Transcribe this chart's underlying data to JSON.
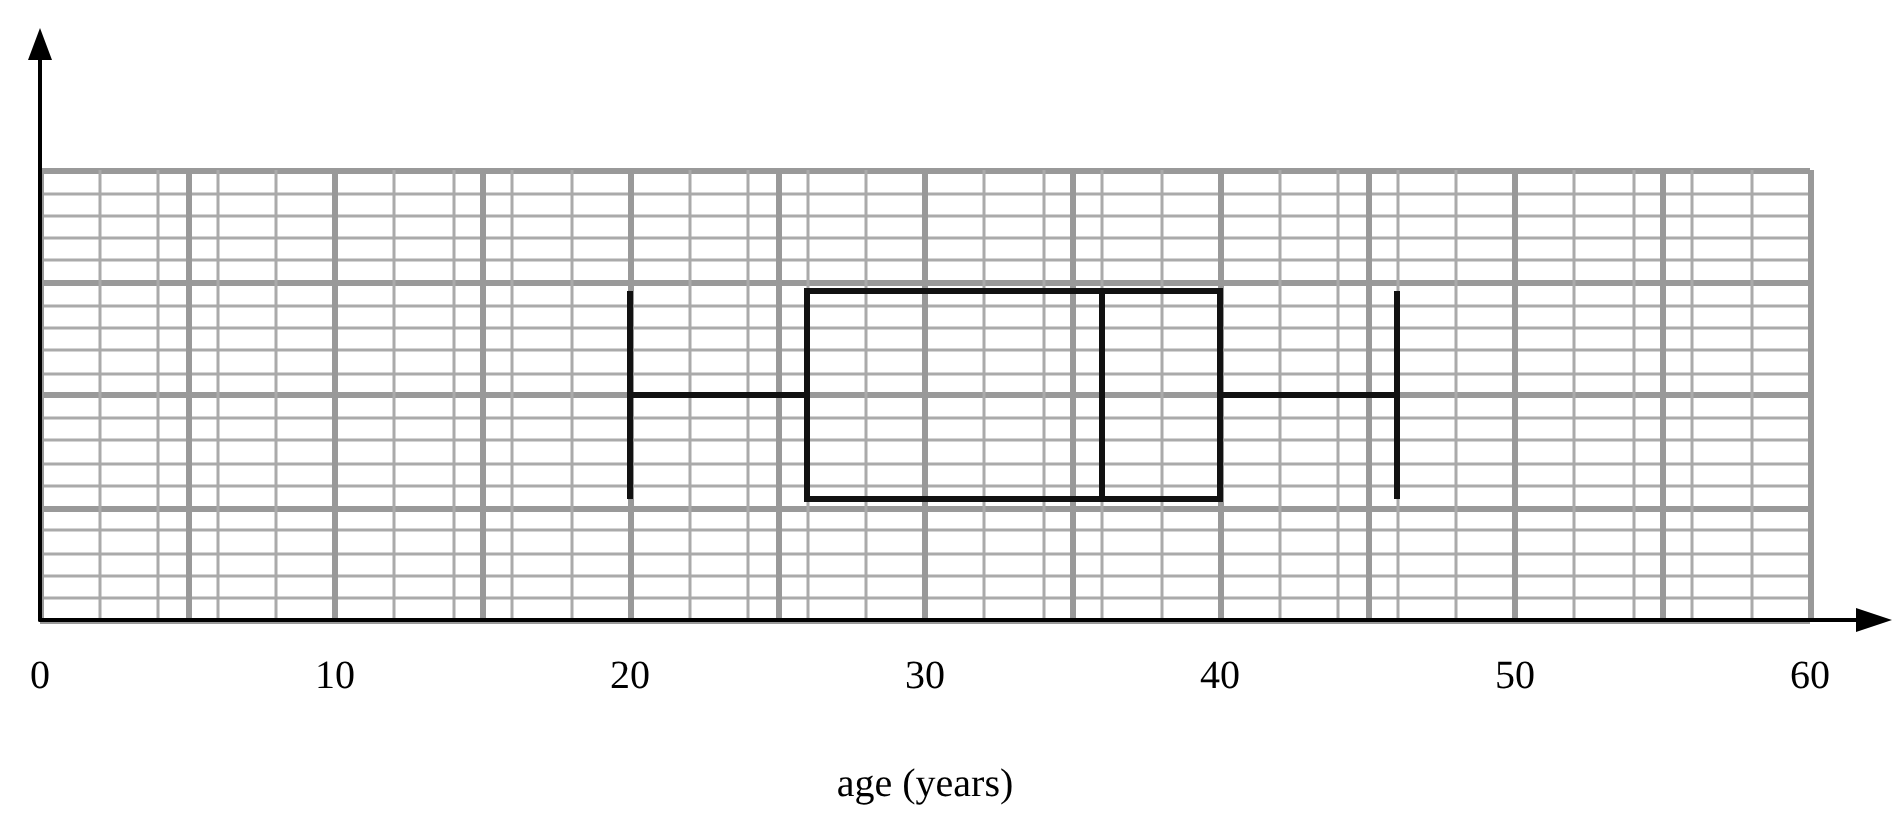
{
  "chart_data": {
    "type": "box",
    "orientation": "horizontal",
    "categories": [
      null
    ],
    "boxes": [
      {
        "low": 20,
        "q1": 26,
        "median": 36,
        "q3": 40,
        "high": 46
      }
    ],
    "xlabel": "age (years)",
    "xlim": [
      0,
      60
    ],
    "xticks": [
      0,
      {
        "value": 5,
        "label": null
      },
      10,
      {
        "value": 15,
        "label": null
      },
      20,
      {
        "value": 25,
        "label": null
      },
      30,
      {
        "value": 35,
        "label": null
      },
      40,
      {
        "value": 45,
        "label": null
      },
      50,
      {
        "value": 55,
        "label": null
      },
      60
    ],
    "grid": true
  }
}
